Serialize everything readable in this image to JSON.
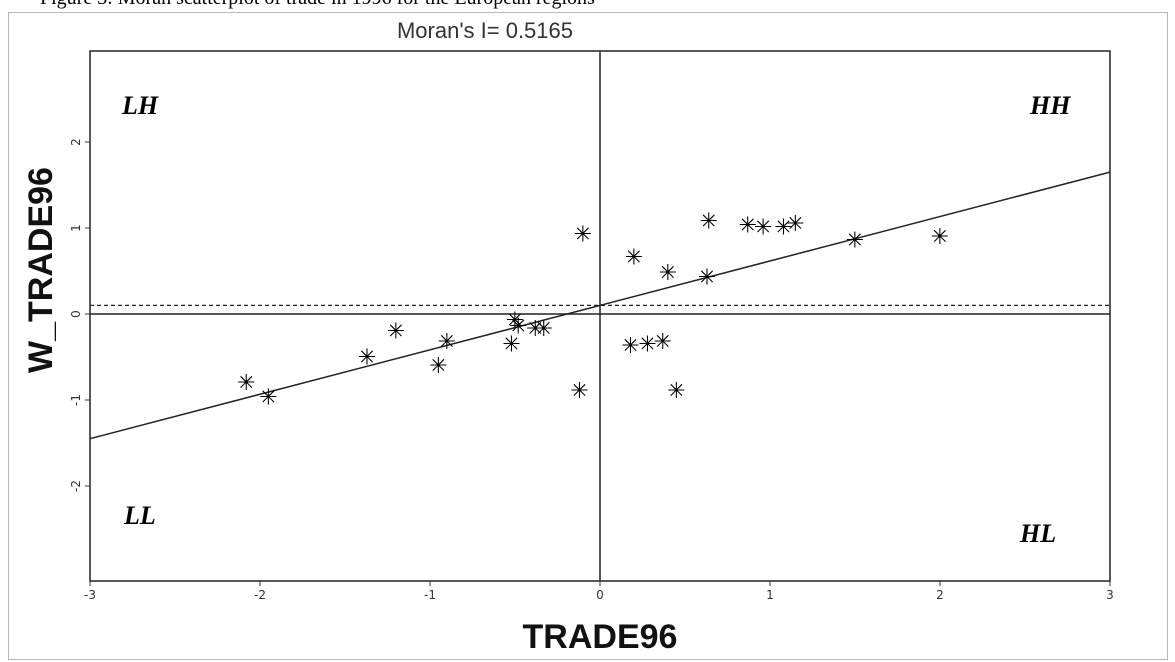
{
  "page": {
    "caption": "Figure 3: Moran scatterplot of trade in 1996 for the European regions"
  },
  "chart_data": {
    "type": "scatter",
    "title": "Moran's I= 0.5165",
    "xlabel": "TRADE96",
    "ylabel": "W_TRADE96",
    "xlim": [
      -3,
      3
    ],
    "ylim": [
      -3,
      3
    ],
    "xticks": [
      -3,
      -2,
      -1,
      0,
      1,
      2,
      3
    ],
    "yticks": [
      -2,
      -1,
      0,
      1,
      2
    ],
    "grid": false,
    "quadrants": {
      "top_left": "LH",
      "top_right": "HH",
      "bottom_left": "LL",
      "bottom_right": "HL"
    },
    "mean_line_y": 0.1,
    "regression_line": {
      "x": [
        -3,
        3
      ],
      "y": [
        -1.45,
        1.65
      ]
    },
    "points": [
      [
        -2.08,
        -0.78
      ],
      [
        -1.95,
        -0.95
      ],
      [
        -1.37,
        -0.48
      ],
      [
        -1.2,
        -0.18
      ],
      [
        -0.95,
        -0.58
      ],
      [
        -0.9,
        -0.3
      ],
      [
        -0.52,
        -0.33
      ],
      [
        -0.5,
        -0.05
      ],
      [
        -0.48,
        -0.12
      ],
      [
        -0.38,
        -0.15
      ],
      [
        -0.33,
        -0.15
      ],
      [
        -0.12,
        -0.87
      ],
      [
        -0.1,
        0.95
      ],
      [
        0.18,
        -0.35
      ],
      [
        0.2,
        0.68
      ],
      [
        0.28,
        -0.33
      ],
      [
        0.37,
        -0.3
      ],
      [
        0.4,
        0.5
      ],
      [
        0.45,
        -0.87
      ],
      [
        0.63,
        0.45
      ],
      [
        0.64,
        1.1
      ],
      [
        0.87,
        1.05
      ],
      [
        0.96,
        1.03
      ],
      [
        1.08,
        1.03
      ],
      [
        1.15,
        1.07
      ],
      [
        1.5,
        0.88
      ],
      [
        2.0,
        0.92
      ]
    ]
  }
}
